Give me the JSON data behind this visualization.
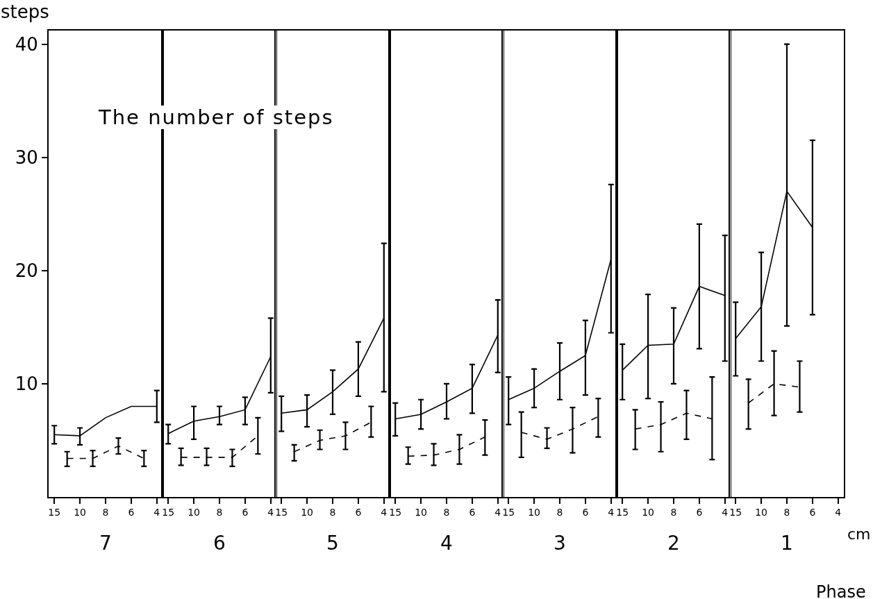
{
  "chart_data": [
    {
      "type": "line",
      "ylabel": "steps",
      "xlabel": "7",
      "annotations": [
        "The number of steps"
      ],
      "categories": [
        "15",
        null,
        "10",
        null,
        "8",
        null,
        "6",
        null,
        "4"
      ],
      "ylim": [
        0,
        41.2
      ],
      "yticks": [
        10,
        20,
        30,
        40
      ],
      "series": [
        {
          "color": "#000000",
          "line_style": "solid",
          "values": [
            5.5,
            null,
            5.4,
            null,
            7.0,
            null,
            8.0,
            null,
            8.0
          ],
          "errors": [
            [
              4.7,
              6.3
            ],
            null,
            [
              4.6,
              6.1
            ],
            null,
            null,
            null,
            null,
            null,
            [
              6.6,
              9.4
            ]
          ]
        },
        {
          "color": "#000000",
          "line_style": "dashed",
          "values": [
            null,
            3.4,
            null,
            3.4,
            null,
            4.5,
            null,
            3.4,
            null
          ],
          "errors": [
            null,
            [
              2.7,
              4.0
            ],
            null,
            [
              2.7,
              4.1
            ],
            null,
            [
              3.8,
              5.2
            ],
            null,
            [
              2.7,
              4.1
            ],
            null
          ]
        }
      ]
    },
    {
      "type": "line",
      "xlabel": "6",
      "tick_labels": "x",
      "categories": [
        "15",
        null,
        "10",
        null,
        "8",
        null,
        "6",
        null,
        "4"
      ],
      "ylim": [
        0,
        41.2
      ],
      "yticks": [
        10,
        20,
        30,
        40
      ],
      "series": [
        {
          "color": "#000000",
          "line_style": "solid",
          "values": [
            5.6,
            null,
            6.7,
            null,
            7.1,
            null,
            7.7,
            null,
            12.4
          ],
          "errors": [
            [
              4.7,
              6.4
            ],
            null,
            [
              5.1,
              8.0
            ],
            null,
            [
              6.4,
              8.0
            ],
            null,
            [
              6.4,
              8.8
            ],
            null,
            [
              9.2,
              15.8
            ]
          ]
        },
        {
          "color": "#000000",
          "line_style": "dashed",
          "values": [
            null,
            3.5,
            null,
            3.5,
            null,
            3.5,
            null,
            5.4,
            null
          ],
          "errors": [
            null,
            [
              2.8,
              4.3
            ],
            null,
            [
              2.8,
              4.3
            ],
            null,
            [
              2.7,
              4.2
            ],
            null,
            [
              3.8,
              7.0
            ],
            null
          ]
        }
      ]
    },
    {
      "type": "line",
      "xlabel": "5",
      "tick_labels": "x",
      "categories": [
        "15",
        null,
        "10",
        null,
        "8",
        null,
        "6",
        null,
        "4"
      ],
      "ylim": [
        0,
        41.2
      ],
      "yticks": [
        10,
        20,
        30,
        40
      ],
      "series": [
        {
          "color": "#000000",
          "line_style": "solid",
          "values": [
            7.4,
            null,
            7.7,
            null,
            9.3,
            null,
            11.3,
            null,
            15.8
          ],
          "errors": [
            [
              5.8,
              8.9
            ],
            null,
            [
              6.2,
              9.0
            ],
            null,
            [
              7.3,
              11.2
            ],
            null,
            [
              8.9,
              13.7
            ],
            null,
            [
              9.3,
              22.4
            ]
          ]
        },
        {
          "color": "#000000",
          "line_style": "dashed",
          "values": [
            null,
            4.0,
            null,
            5.0,
            null,
            5.4,
            null,
            6.6,
            null
          ],
          "errors": [
            null,
            [
              3.2,
              4.6
            ],
            null,
            [
              4.2,
              5.9
            ],
            null,
            [
              4.2,
              6.6
            ],
            null,
            [
              5.3,
              8.0
            ],
            null
          ]
        }
      ]
    },
    {
      "type": "line",
      "xlabel": "4",
      "tick_labels": "x",
      "categories": [
        "15",
        null,
        "10",
        null,
        "8",
        null,
        "6",
        null,
        "4"
      ],
      "ylim": [
        0,
        41.2
      ],
      "yticks": [
        10,
        20,
        30,
        40
      ],
      "series": [
        {
          "color": "#000000",
          "line_style": "solid",
          "values": [
            6.9,
            null,
            7.3,
            null,
            8.4,
            null,
            9.6,
            null,
            14.3
          ],
          "errors": [
            [
              5.4,
              8.3
            ],
            null,
            [
              6.0,
              8.6
            ],
            null,
            [
              6.9,
              10.0
            ],
            null,
            [
              7.4,
              11.7
            ],
            null,
            [
              11.0,
              17.4
            ]
          ]
        },
        {
          "color": "#000000",
          "line_style": "dashed",
          "values": [
            null,
            3.6,
            null,
            3.7,
            null,
            4.2,
            null,
            5.3,
            null
          ],
          "errors": [
            null,
            [
              2.9,
              4.4
            ],
            null,
            [
              2.8,
              4.7
            ],
            null,
            [
              2.9,
              5.5
            ],
            null,
            [
              3.7,
              6.8
            ],
            null
          ]
        }
      ]
    },
    {
      "type": "line",
      "xlabel": "3",
      "tick_labels": "x",
      "categories": [
        "15",
        null,
        "10",
        null,
        "8",
        null,
        "6",
        null,
        "4"
      ],
      "ylim": [
        0,
        41.2
      ],
      "yticks": [
        10,
        20,
        30,
        40
      ],
      "series": [
        {
          "color": "#000000",
          "line_style": "solid",
          "values": [
            8.6,
            null,
            9.6,
            null,
            11.1,
            null,
            12.5,
            null,
            21.0
          ],
          "errors": [
            [
              6.4,
              10.6
            ],
            null,
            [
              7.9,
              11.3
            ],
            null,
            [
              8.6,
              13.6
            ],
            null,
            [
              9.0,
              15.6
            ],
            null,
            [
              14.5,
              27.6
            ]
          ]
        },
        {
          "color": "#000000",
          "line_style": "dashed",
          "values": [
            null,
            5.7,
            null,
            5.1,
            null,
            6.0,
            null,
            7.1,
            null
          ],
          "errors": [
            null,
            [
              3.5,
              7.5
            ],
            null,
            [
              4.3,
              6.1
            ],
            null,
            [
              3.9,
              7.9
            ],
            null,
            [
              5.3,
              8.7
            ],
            null
          ]
        }
      ]
    },
    {
      "type": "line",
      "xlabel": "2",
      "tick_labels": "x",
      "categories": [
        "15",
        null,
        "10",
        null,
        "8",
        null,
        "6",
        null,
        "4"
      ],
      "ylim": [
        0,
        41.2
      ],
      "yticks": [
        10,
        20,
        30,
        40
      ],
      "series": [
        {
          "color": "#000000",
          "line_style": "solid",
          "values": [
            11.2,
            null,
            13.4,
            null,
            13.5,
            null,
            18.6,
            null,
            17.8
          ],
          "errors": [
            [
              8.6,
              13.5
            ],
            null,
            [
              8.7,
              17.9
            ],
            null,
            [
              10.0,
              16.7
            ],
            null,
            [
              13.1,
              24.1
            ],
            null,
            [
              12.0,
              23.1
            ]
          ]
        },
        {
          "color": "#000000",
          "line_style": "dashed",
          "values": [
            null,
            6.0,
            null,
            6.4,
            null,
            7.4,
            null,
            6.9,
            null
          ],
          "errors": [
            null,
            [
              4.2,
              7.7
            ],
            null,
            [
              4.0,
              8.4
            ],
            null,
            [
              5.1,
              9.4
            ],
            null,
            [
              3.3,
              10.6
            ],
            null
          ]
        }
      ]
    },
    {
      "type": "line",
      "xlabel": "1",
      "tick_labels": "x",
      "annotations": [
        "cm",
        "Phase"
      ],
      "categories": [
        "15",
        null,
        "10",
        null,
        "8",
        null,
        "6",
        null,
        "4"
      ],
      "ylim": [
        0,
        41.2
      ],
      "yticks": [
        10,
        20,
        30,
        40
      ],
      "series": [
        {
          "color": "#000000",
          "line_style": "solid",
          "values": [
            14.0,
            null,
            16.8,
            null,
            27.0,
            null,
            23.8,
            null,
            null
          ],
          "errors": [
            [
              10.7,
              17.2
            ],
            null,
            [
              12.0,
              21.6
            ],
            null,
            [
              15.1,
              40.0
            ],
            null,
            [
              16.1,
              31.5
            ],
            null,
            null
          ]
        },
        {
          "color": "#000000",
          "line_style": "dashed",
          "values": [
            null,
            8.3,
            null,
            10.0,
            null,
            9.7,
            null,
            null,
            null
          ],
          "errors": [
            null,
            [
              6.0,
              10.4
            ],
            null,
            [
              7.2,
              12.9
            ],
            null,
            [
              7.5,
              12.0
            ],
            null,
            null,
            null
          ]
        }
      ]
    }
  ]
}
